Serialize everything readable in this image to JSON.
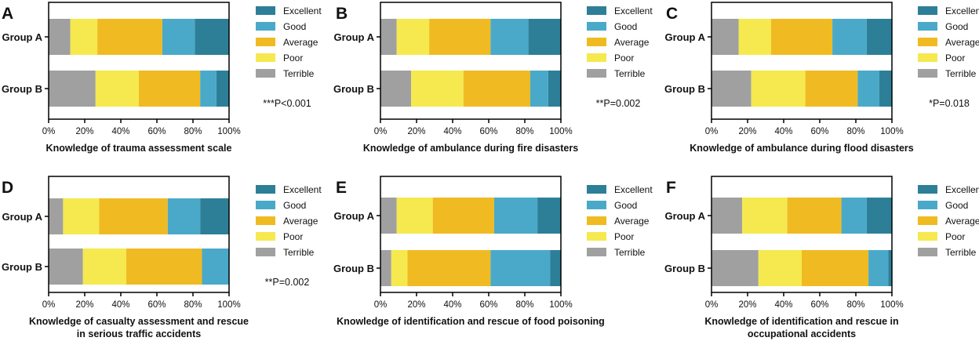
{
  "legend_items": [
    "Excellent",
    "Good",
    "Average",
    "Poor",
    "Terrible"
  ],
  "colors": {
    "Terrible": "#a0a0a0",
    "Poor": "#f5e94f",
    "Average": "#f0bb22",
    "Good": "#4aa9c8",
    "Excellent": "#2d7f98"
  },
  "chart_data": [
    {
      "panel": "A",
      "type": "bar",
      "orientation": "horizontal-stacked-percent",
      "categories": [
        "Group A",
        "Group B"
      ],
      "series": [
        {
          "name": "Terrible",
          "values": [
            12,
            26
          ]
        },
        {
          "name": "Poor",
          "values": [
            15,
            24
          ]
        },
        {
          "name": "Average",
          "values": [
            36,
            34
          ]
        },
        {
          "name": "Good",
          "values": [
            18,
            9
          ]
        },
        {
          "name": "Excellent",
          "values": [
            19,
            7
          ]
        }
      ],
      "xticks": [
        "0%",
        "20%",
        "40%",
        "60%",
        "80%",
        "100%"
      ],
      "xlim": [
        0,
        100
      ],
      "xlabel": [
        "Knowledge of trauma assessment scale"
      ],
      "annotation": "***P<0.001"
    },
    {
      "panel": "B",
      "type": "bar",
      "orientation": "horizontal-stacked-percent",
      "categories": [
        "Group A",
        "Group B"
      ],
      "series": [
        {
          "name": "Terrible",
          "values": [
            9,
            17
          ]
        },
        {
          "name": "Poor",
          "values": [
            18,
            29
          ]
        },
        {
          "name": "Average",
          "values": [
            34,
            37
          ]
        },
        {
          "name": "Good",
          "values": [
            21,
            10
          ]
        },
        {
          "name": "Excellent",
          "values": [
            18,
            7
          ]
        }
      ],
      "xticks": [
        "0%",
        "20%",
        "40%",
        "60%",
        "80%",
        "100%"
      ],
      "xlim": [
        0,
        100
      ],
      "xlabel": [
        "Knowledge of ambulance during fire disasters"
      ],
      "annotation": "**P=0.002"
    },
    {
      "panel": "C",
      "type": "bar",
      "orientation": "horizontal-stacked-percent",
      "categories": [
        "Group A",
        "Group B"
      ],
      "series": [
        {
          "name": "Terrible",
          "values": [
            15,
            22
          ]
        },
        {
          "name": "Poor",
          "values": [
            18,
            30
          ]
        },
        {
          "name": "Average",
          "values": [
            34,
            29
          ]
        },
        {
          "name": "Good",
          "values": [
            19,
            12
          ]
        },
        {
          "name": "Excellent",
          "values": [
            14,
            7
          ]
        }
      ],
      "xticks": [
        "0%",
        "20%",
        "40%",
        "60%",
        "80%",
        "100%"
      ],
      "xlim": [
        0,
        100
      ],
      "xlabel": [
        "Knowledge of ambulance during flood disasters"
      ],
      "annotation": "*P=0.018"
    },
    {
      "panel": "D",
      "type": "bar",
      "orientation": "horizontal-stacked-percent",
      "categories": [
        "Group A",
        "Group B"
      ],
      "series": [
        {
          "name": "Terrible",
          "values": [
            8,
            19
          ]
        },
        {
          "name": "Poor",
          "values": [
            20,
            24
          ]
        },
        {
          "name": "Average",
          "values": [
            38,
            42
          ]
        },
        {
          "name": "Good",
          "values": [
            18,
            15
          ]
        },
        {
          "name": "Excellent",
          "values": [
            16,
            0
          ]
        }
      ],
      "xticks": [
        "0%",
        "20%",
        "40%",
        "60%",
        "80%",
        "100%"
      ],
      "xlim": [
        0,
        100
      ],
      "xlabel": [
        "Knowledge of casualty assessment and rescue",
        "in serious traffic accidents"
      ],
      "annotation": "**P=0.002"
    },
    {
      "panel": "E",
      "type": "bar",
      "orientation": "horizontal-stacked-percent",
      "categories": [
        "Group A",
        "Group B"
      ],
      "series": [
        {
          "name": "Terrible",
          "values": [
            9,
            6
          ]
        },
        {
          "name": "Poor",
          "values": [
            20,
            9
          ]
        },
        {
          "name": "Average",
          "values": [
            34,
            46
          ]
        },
        {
          "name": "Good",
          "values": [
            24,
            33
          ]
        },
        {
          "name": "Excellent",
          "values": [
            13,
            6
          ]
        }
      ],
      "xticks": [
        "0%",
        "20%",
        "40%",
        "60%",
        "80%",
        "100%"
      ],
      "xlim": [
        0,
        100
      ],
      "xlabel": [
        "Knowledge of identification and rescue of food poisoning"
      ],
      "annotation": ""
    },
    {
      "panel": "F",
      "type": "bar",
      "orientation": "horizontal-stacked-percent",
      "categories": [
        "Group A",
        "Group B"
      ],
      "series": [
        {
          "name": "Terrible",
          "values": [
            17,
            26
          ]
        },
        {
          "name": "Poor",
          "values": [
            25,
            24
          ]
        },
        {
          "name": "Average",
          "values": [
            30,
            37
          ]
        },
        {
          "name": "Good",
          "values": [
            14,
            11
          ]
        },
        {
          "name": "Excellent",
          "values": [
            14,
            2
          ]
        }
      ],
      "xticks": [
        "0%",
        "20%",
        "40%",
        "60%",
        "80%",
        "100%"
      ],
      "xlim": [
        0,
        100
      ],
      "xlabel": [
        "Knowledge of identification and rescue in",
        "occupational accidents"
      ],
      "annotation": ""
    }
  ]
}
